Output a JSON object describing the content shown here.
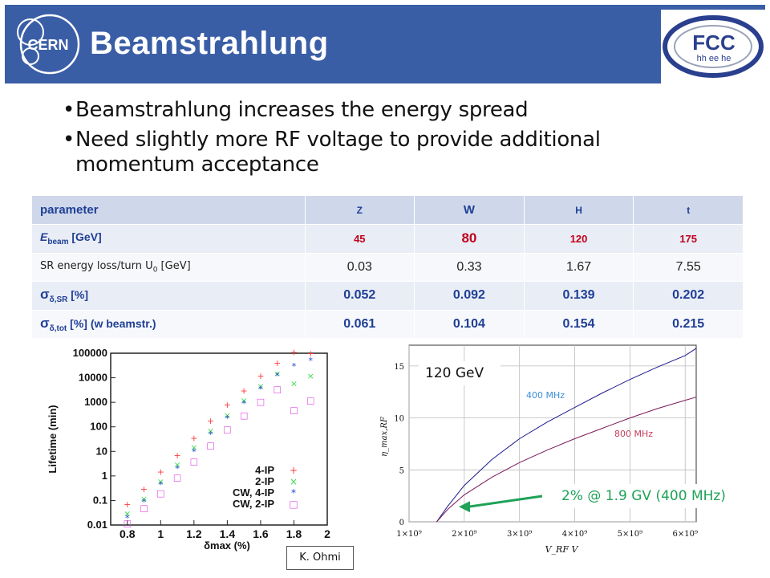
{
  "header": {
    "title": "Beamstrahlung",
    "cern_logo_text": "CERN",
    "fcc_logo_text": "FCC",
    "fcc_logo_sub": "hh ee he",
    "background_color": "#3a5ea6"
  },
  "bullets": [
    "Beamstrahlung increases the energy spread",
    "Need slightly more RF voltage to provide additional momentum acceptance"
  ],
  "table": {
    "header": [
      "parameter",
      "Z",
      "W",
      "H",
      "t"
    ],
    "rows": [
      {
        "label_main": "E",
        "label_sub": "beam",
        "label_tail": " [GeV]",
        "values": [
          "45",
          "80",
          "120",
          "175"
        ]
      },
      {
        "label_main": "SR energy loss/turn U",
        "label_sub": "0",
        "label_tail": " [GeV]",
        "values": [
          "0.03",
          "0.33",
          "1.67",
          "7.55"
        ]
      },
      {
        "label_main": "σ",
        "label_sub": "δ,SR",
        "label_tail": "  [%]",
        "values": [
          "0.052",
          "0.092",
          "0.139",
          "0.202"
        ]
      },
      {
        "label_main": "σ",
        "label_sub": "δ,tot",
        "label_tail": " [%] (w beamstr.)",
        "values": [
          "0.061",
          "0.104",
          "0.154",
          "0.215"
        ]
      }
    ]
  },
  "chart_data": [
    {
      "type": "scatter",
      "ylabel": "Lifetime (min)",
      "xlabel": "δmax (%)",
      "y_scale": "log",
      "ylim": [
        0.01,
        100000
      ],
      "xlim": [
        0.7,
        2.0
      ],
      "x_ticks": [
        "0.8",
        "1",
        "1.2",
        "1.4",
        "1.6",
        "1.8",
        "2"
      ],
      "y_ticks": [
        "100000",
        "10000",
        "1000",
        "100",
        "10",
        "1",
        "0.1",
        "0.01"
      ],
      "legend_position": "bottom-right",
      "series": [
        {
          "name": "4-IP",
          "color": "#ff3b3b",
          "marker": "+",
          "points": [
            [
              0.8,
              0.07
            ],
            [
              0.9,
              0.3
            ],
            [
              1.0,
              1.5
            ],
            [
              1.1,
              7
            ],
            [
              1.2,
              35
            ],
            [
              1.3,
              180
            ],
            [
              1.4,
              800
            ],
            [
              1.5,
              3000
            ],
            [
              1.6,
              12000
            ],
            [
              1.7,
              40000
            ],
            [
              1.8,
              110000
            ],
            [
              1.9,
              100000
            ]
          ]
        },
        {
          "name": "2-IP",
          "color": "#3ddc4a",
          "marker": "×",
          "points": [
            [
              0.8,
              0.03
            ],
            [
              0.9,
              0.12
            ],
            [
              1.0,
              0.6
            ],
            [
              1.1,
              3
            ],
            [
              1.2,
              15
            ],
            [
              1.3,
              70
            ],
            [
              1.4,
              300
            ],
            [
              1.5,
              1200
            ],
            [
              1.6,
              4500
            ],
            [
              1.7,
              15000
            ],
            [
              1.8,
              6000
            ],
            [
              1.9,
              12000
            ]
          ]
        },
        {
          "name": "CW, 4-IP",
          "color": "#2340d8",
          "marker": "*",
          "points": [
            [
              0.8,
              0.02
            ],
            [
              0.9,
              0.09
            ],
            [
              1.0,
              0.45
            ],
            [
              1.1,
              2
            ],
            [
              1.2,
              10
            ],
            [
              1.3,
              50
            ],
            [
              1.4,
              220
            ],
            [
              1.5,
              900
            ],
            [
              1.6,
              3500
            ],
            [
              1.7,
              12000
            ],
            [
              1.8,
              30000
            ],
            [
              1.9,
              50000
            ]
          ]
        },
        {
          "name": "CW, 2-IP",
          "color": "#e14be0",
          "marker": "□",
          "points": [
            [
              0.8,
              0.012
            ],
            [
              0.9,
              0.05
            ],
            [
              1.0,
              0.2
            ],
            [
              1.1,
              0.9
            ],
            [
              1.2,
              4
            ],
            [
              1.3,
              18
            ],
            [
              1.4,
              80
            ],
            [
              1.5,
              300
            ],
            [
              1.6,
              1100
            ],
            [
              1.7,
              3500
            ],
            [
              1.8,
              500
            ],
            [
              1.9,
              1200
            ]
          ]
        }
      ]
    },
    {
      "type": "line",
      "xlabel": "V_RF  V",
      "ylabel": "η_max,RF",
      "xlim": [
        1000000000,
        6200000000
      ],
      "ylim": [
        0,
        17
      ],
      "x_ticks": [
        "1×10⁹",
        "2×10⁹",
        "3×10⁹",
        "4×10⁹",
        "5×10⁹",
        "6×10⁹"
      ],
      "y_ticks": [
        "0",
        "5",
        "10",
        "15"
      ],
      "grid": true,
      "series": [
        {
          "name": "400 MHz",
          "color": "#1a1a8c",
          "label_color": "#3a8fd8",
          "points": [
            [
              1500000000,
              0
            ],
            [
              1700000000,
              1.5
            ],
            [
              2000000000,
              3.5
            ],
            [
              2500000000,
              6
            ],
            [
              3000000000,
              8
            ],
            [
              3500000000,
              9.6
            ],
            [
              4000000000,
              11
            ],
            [
              4500000000,
              12.4
            ],
            [
              5000000000,
              13.7
            ],
            [
              5500000000,
              14.9
            ],
            [
              6000000000,
              16
            ],
            [
              6200000000,
              16.7
            ]
          ]
        },
        {
          "name": "800 MHz",
          "color": "#7a1a5a",
          "label_color": "#c63c5c",
          "points": [
            [
              1500000000,
              0
            ],
            [
              1700000000,
              1.2
            ],
            [
              2000000000,
              2.6
            ],
            [
              2500000000,
              4.3
            ],
            [
              3000000000,
              5.7
            ],
            [
              3500000000,
              6.9
            ],
            [
              4000000000,
              8.0
            ],
            [
              4500000000,
              9.0
            ],
            [
              5000000000,
              10.0
            ],
            [
              5500000000,
              10.9
            ],
            [
              6000000000,
              11.7
            ],
            [
              6200000000,
              12
            ]
          ]
        }
      ],
      "annotations": {
        "energy": "120 GeV",
        "arrow_label": "2% @ 1.9 GV (400 MHz)",
        "arrow_color": "#1fa257"
      }
    }
  ],
  "credit": "K. Ohmi"
}
